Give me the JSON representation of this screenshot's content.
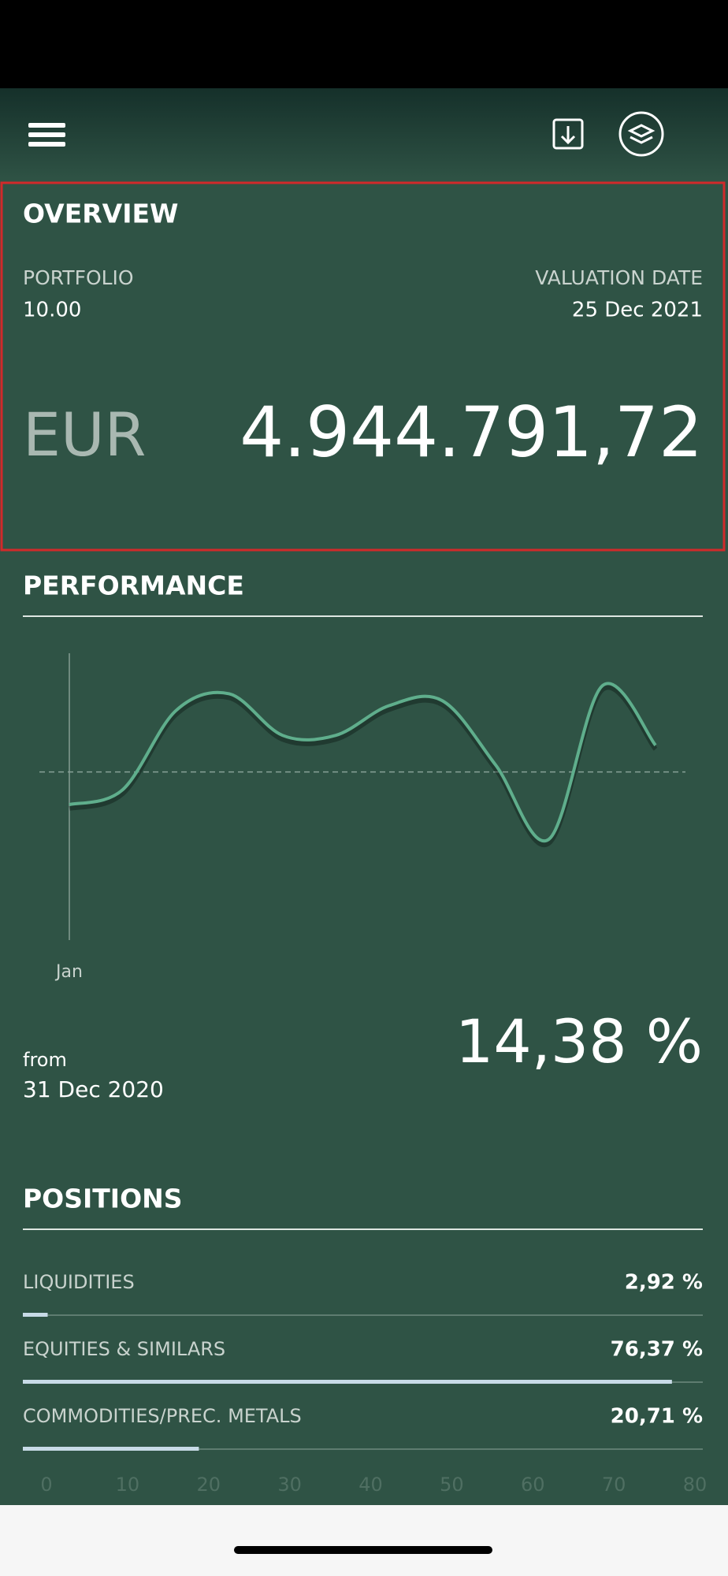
{
  "overview": {
    "title": "OVERVIEW",
    "portfolio_label": "PORTFOLIO",
    "portfolio": "10.00",
    "valuation_label": "VALUATION DATE",
    "valuation_date": "25 Dec 2021",
    "currency": "EUR",
    "amount": "4.944.791,72"
  },
  "performance": {
    "title": "PERFORMANCE",
    "from_label": "from",
    "from_date": "31 Dec 2020",
    "return": "14,38 %",
    "chart_data": {
      "type": "line",
      "x_label": "Jan",
      "values": [
        -3.3,
        -1.8,
        6.2,
        7.9,
        3.7,
        3.7,
        6.7,
        7.2,
        0.7,
        -6.8,
        8.7,
        2.7
      ],
      "color": "#5fae8c",
      "ylim": [
        -17,
        12
      ],
      "baseline": 0
    }
  },
  "positions": {
    "title": "POSITIONS",
    "chart_data": {
      "type": "bar",
      "categories": [
        "LIQUIDITIES",
        "EQUITIES & SIMILARS",
        "COMMODITIES/PREC. METALS"
      ],
      "values": [
        2.92,
        76.37,
        20.71
      ],
      "value_labels": [
        "2,92 %",
        "76,37 %",
        "20,71 %"
      ],
      "color": "#c8dbe7",
      "xlim": [
        0,
        80
      ],
      "xticks": [
        0,
        10,
        20,
        30,
        40,
        50,
        60,
        70,
        80
      ]
    }
  }
}
